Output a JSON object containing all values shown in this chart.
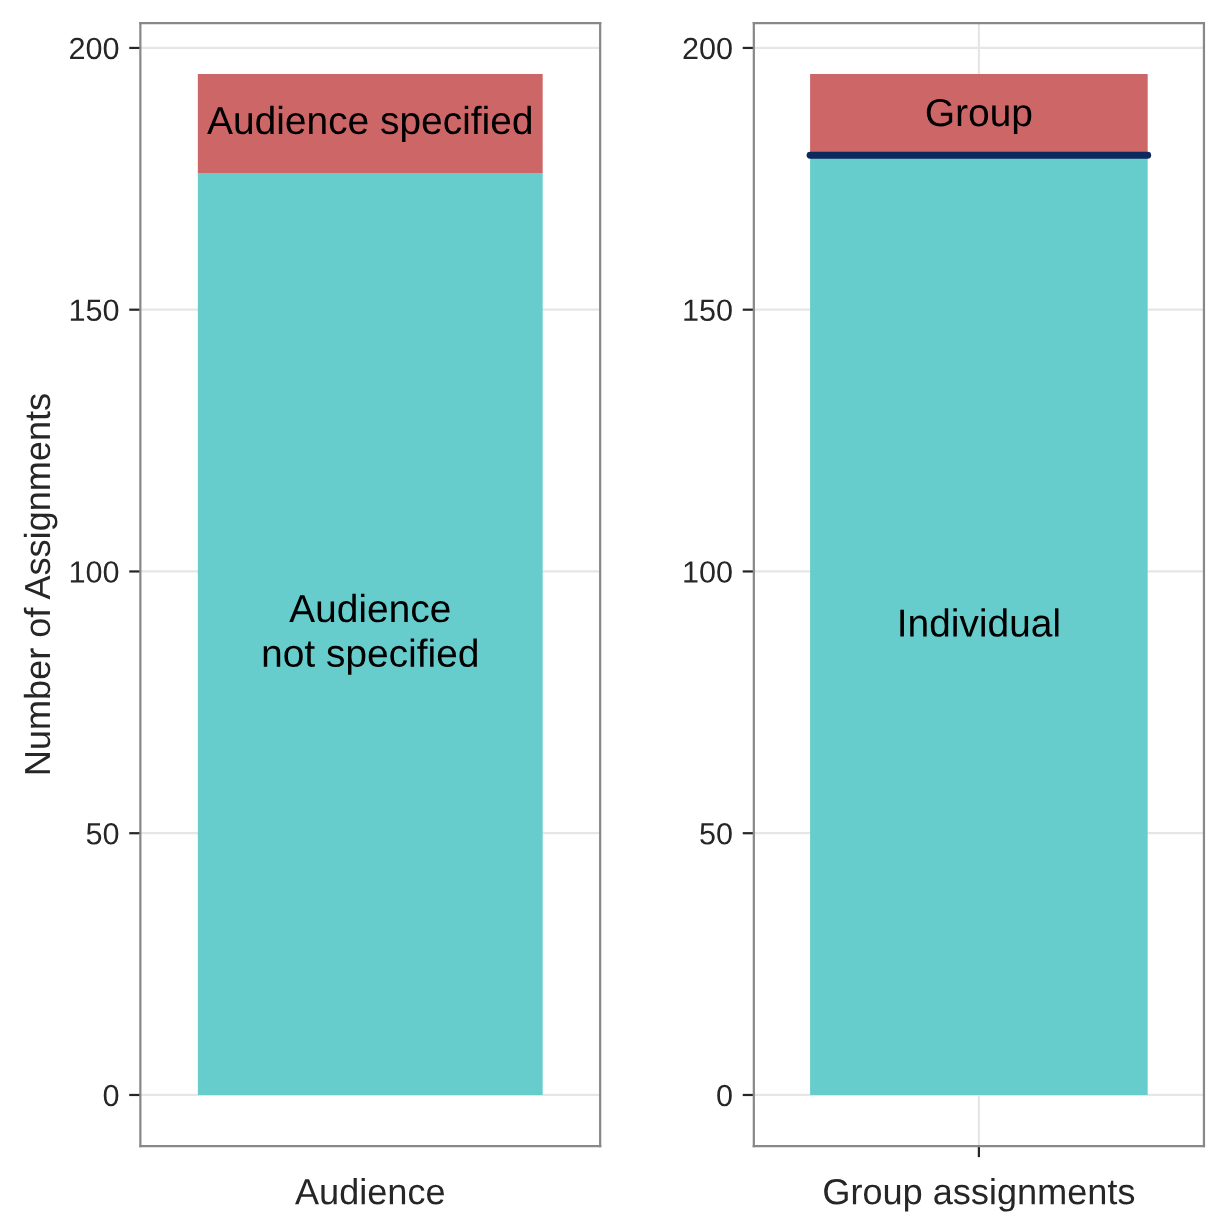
{
  "chart_data": [
    {
      "type": "bar",
      "stacked": true,
      "categories": [
        null
      ],
      "xlabel": "Audience",
      "ylabel": "Number of Assignments",
      "ylim": [
        -9.75,
        204.75
      ],
      "yticks": [
        0,
        50,
        100,
        150,
        200
      ],
      "grid": "y",
      "series": [
        {
          "name": "Audience\nnot specified",
          "color": "#66cdcc",
          "values": [
            176
          ]
        },
        {
          "name": "Audience specified",
          "color": "#cd6666",
          "values": [
            19
          ]
        }
      ]
    },
    {
      "type": "bar",
      "stacked": true,
      "categories": [
        null
      ],
      "xlabel": "Group assignments",
      "ylim": [
        -9.75,
        204.75
      ],
      "yticks": [
        0,
        50,
        100,
        150,
        200
      ],
      "grid": true,
      "ref_lines": [
        {
          "axis": "y",
          "value": 179.5,
          "color": "#0d2a5e"
        }
      ],
      "series": [
        {
          "name": "Individual",
          "color": "#66cdcc",
          "values": [
            179
          ]
        },
        {
          "name": "Group",
          "color": "#cd6666",
          "values": [
            16
          ]
        }
      ]
    }
  ]
}
